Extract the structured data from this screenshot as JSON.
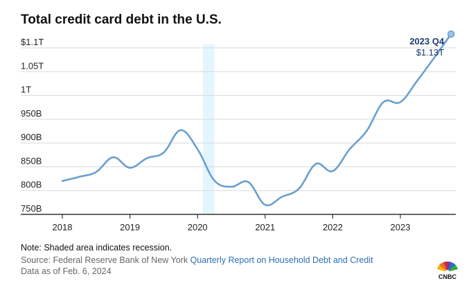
{
  "title": "Total credit card debt in the U.S.",
  "chart_data": {
    "type": "line",
    "title": "Total credit card debt in the U.S.",
    "xlabel": "",
    "ylabel": "",
    "x_ticks": [
      "2018",
      "2019",
      "2020",
      "2021",
      "2022",
      "2023"
    ],
    "y_ticks": [
      {
        "value": 750,
        "label": "750B"
      },
      {
        "value": 800,
        "label": "800B"
      },
      {
        "value": 850,
        "label": "850B"
      },
      {
        "value": 900,
        "label": "900B"
      },
      {
        "value": 950,
        "label": "950B"
      },
      {
        "value": 1000,
        "label": "1T"
      },
      {
        "value": 1050,
        "label": "1.05T"
      },
      {
        "value": 1100,
        "label": "$1.1T"
      }
    ],
    "ylim": [
      735,
      1130
    ],
    "grid": "horizontal",
    "shaded_region": {
      "x_start": 2020.08,
      "x_end": 2020.25
    },
    "line_color": "#6a9fd0",
    "shade_color": "#e4f6fd",
    "series": [
      {
        "points": [
          {
            "x": 2018.0,
            "y": 820
          },
          {
            "x": 2018.25,
            "y": 829
          },
          {
            "x": 2018.5,
            "y": 839
          },
          {
            "x": 2018.75,
            "y": 870
          },
          {
            "x": 2019.0,
            "y": 848
          },
          {
            "x": 2019.25,
            "y": 868
          },
          {
            "x": 2019.5,
            "y": 880
          },
          {
            "x": 2019.75,
            "y": 927
          },
          {
            "x": 2020.0,
            "y": 887
          },
          {
            "x": 2020.25,
            "y": 821
          },
          {
            "x": 2020.5,
            "y": 808
          },
          {
            "x": 2020.75,
            "y": 818
          },
          {
            "x": 2021.0,
            "y": 770
          },
          {
            "x": 2021.25,
            "y": 787
          },
          {
            "x": 2021.5,
            "y": 804
          },
          {
            "x": 2021.75,
            "y": 856
          },
          {
            "x": 2022.0,
            "y": 841
          },
          {
            "x": 2022.25,
            "y": 887
          },
          {
            "x": 2022.5,
            "y": 925
          },
          {
            "x": 2022.75,
            "y": 986
          },
          {
            "x": 2023.0,
            "y": 986
          },
          {
            "x": 2023.25,
            "y": 1031
          },
          {
            "x": 2023.5,
            "y": 1079
          },
          {
            "x": 2023.75,
            "y": 1129
          }
        ]
      }
    ],
    "annotation": {
      "label": "2023 Q4",
      "value_label": "$1.13T",
      "x": 2023.75,
      "y": 1129
    }
  },
  "footer": {
    "note": "Note: Shaded area indicates recession.",
    "source_prefix": "Source: Federal Reserve Bank of New York ",
    "source_link": "Quarterly Report on Household Debt and Credit",
    "as_of": "Data as of Feb. 6, 2024"
  },
  "logo": {
    "text": "CNBC"
  }
}
